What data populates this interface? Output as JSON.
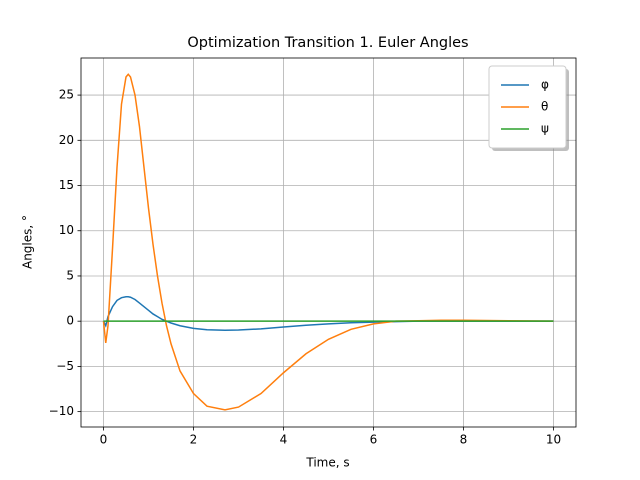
{
  "chart_data": {
    "type": "line",
    "title": "Optimization Transition 1. Euler Angles",
    "x_label": "Time, s",
    "y_label": "Angles, °",
    "x": [
      0,
      0.05,
      0.1,
      0.2,
      0.3,
      0.4,
      0.5,
      0.55,
      0.6,
      0.7,
      0.8,
      0.9,
      1.0,
      1.1,
      1.2,
      1.3,
      1.4,
      1.5,
      1.7,
      2.0,
      2.3,
      2.7,
      3.0,
      3.5,
      4.0,
      4.5,
      5.0,
      5.5,
      6.0,
      6.5,
      7.0,
      7.5,
      8.0,
      9.0,
      10.0
    ],
    "series": [
      {
        "name": "φ",
        "color": "#1f77b4",
        "values": [
          0,
          -0.5,
          0.5,
          1.6,
          2.3,
          2.6,
          2.7,
          2.7,
          2.65,
          2.4,
          2.0,
          1.6,
          1.2,
          0.8,
          0.5,
          0.2,
          0,
          -0.2,
          -0.5,
          -0.8,
          -0.95,
          -1.0,
          -0.98,
          -0.85,
          -0.65,
          -0.45,
          -0.3,
          -0.18,
          -0.1,
          -0.05,
          0,
          0,
          0,
          0,
          0
        ]
      },
      {
        "name": "θ",
        "color": "#ff7f0e",
        "values": [
          0,
          -2.4,
          -0.5,
          8,
          17,
          24,
          27,
          27.3,
          27,
          25,
          21.5,
          17,
          12.5,
          8.5,
          5,
          2,
          -0.5,
          -2.5,
          -5.5,
          -8,
          -9.4,
          -9.8,
          -9.5,
          -8,
          -5.7,
          -3.6,
          -2,
          -0.9,
          -0.3,
          0,
          0.05,
          0.1,
          0.1,
          0.05,
          0
        ]
      },
      {
        "name": "ψ",
        "color": "#2ca02c",
        "values": [
          0,
          0,
          0,
          0,
          0,
          0,
          0,
          0,
          0,
          0,
          0,
          0,
          0,
          0,
          0,
          0,
          0,
          0,
          0,
          0,
          0,
          0,
          0,
          0,
          0,
          0,
          0,
          0,
          0,
          0,
          0,
          0,
          0,
          0,
          0
        ]
      }
    ],
    "xlim": [
      -0.5,
      10.5
    ],
    "ylim": [
      -11.7,
      29.1
    ],
    "xticks": [
      0,
      2,
      4,
      6,
      8,
      10
    ],
    "yticks": [
      {
        "value": -10,
        "label": "−10"
      },
      {
        "value": -5,
        "label": "−5"
      },
      0,
      5,
      10,
      15,
      20,
      25
    ],
    "grid": true,
    "legend": "upper right"
  }
}
